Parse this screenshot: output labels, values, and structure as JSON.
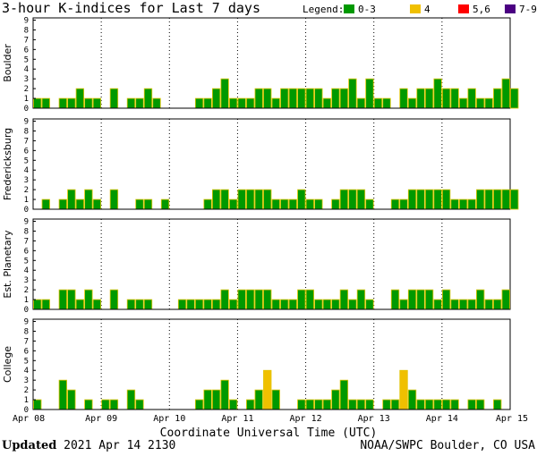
{
  "title": "3-hour K-indices for Last 7 days",
  "legend": {
    "label": "Legend:",
    "items": [
      {
        "label": "0-3",
        "color": "#009900"
      },
      {
        "label": "4",
        "color": "#f0c000"
      },
      {
        "label": "5,6",
        "color": "#ff0000"
      },
      {
        "label": "7-9",
        "color": "#4b0082"
      }
    ]
  },
  "footer": {
    "xlabel": "Coordinate Universal Time (UTC)",
    "updated_label": "Updated",
    "updated_value": "2021 Apr 14 2130",
    "credit": "NOAA/SWPC Boulder, CO USA"
  },
  "chart_data": [
    {
      "type": "bar",
      "ylabel": "Boulder",
      "ylim": [
        0,
        9
      ],
      "yticks": [
        0,
        1,
        2,
        3,
        4,
        5,
        6,
        7,
        8,
        9
      ],
      "xticks": [
        "Apr 08",
        "Apr 09",
        "Apr 10",
        "Apr 11",
        "Apr 12",
        "Apr 13",
        "Apr 14",
        "Apr 15"
      ],
      "values": [
        1,
        1,
        0,
        1,
        1,
        2,
        1,
        1,
        0,
        2,
        0,
        1,
        1,
        2,
        1,
        0,
        0,
        0,
        0,
        1,
        1,
        2,
        3,
        1,
        1,
        1,
        2,
        2,
        1,
        2,
        2,
        2,
        2,
        2,
        1,
        2,
        2,
        3,
        1,
        3,
        1,
        1,
        0,
        2,
        1,
        2,
        2,
        3,
        2,
        2,
        1,
        2,
        1,
        1,
        2,
        3,
        2,
        0
      ]
    },
    {
      "type": "bar",
      "ylabel": "Fredericksburg",
      "ylim": [
        0,
        9
      ],
      "yticks": [
        0,
        1,
        2,
        3,
        4,
        5,
        6,
        7,
        8,
        9
      ],
      "xticks": [
        "Apr 08",
        "Apr 09",
        "Apr 10",
        "Apr 11",
        "Apr 12",
        "Apr 13",
        "Apr 14",
        "Apr 15"
      ],
      "values": [
        0,
        1,
        0,
        1,
        2,
        1,
        2,
        1,
        0,
        2,
        0,
        0,
        1,
        1,
        0,
        1,
        0,
        0,
        0,
        0,
        1,
        2,
        2,
        1,
        2,
        2,
        2,
        2,
        1,
        1,
        1,
        2,
        1,
        1,
        0,
        1,
        2,
        2,
        2,
        1,
        0,
        0,
        1,
        1,
        2,
        2,
        2,
        2,
        2,
        1,
        1,
        1,
        2,
        2,
        2,
        2,
        2,
        0
      ]
    },
    {
      "type": "bar",
      "ylabel": "Est. Planetary",
      "ylim": [
        0,
        9
      ],
      "yticks": [
        0,
        1,
        2,
        3,
        4,
        5,
        6,
        7,
        8,
        9
      ],
      "xticks": [
        "Apr 08",
        "Apr 09",
        "Apr 10",
        "Apr 11",
        "Apr 12",
        "Apr 13",
        "Apr 14",
        "Apr 15"
      ],
      "values": [
        1,
        1,
        0,
        2,
        2,
        1,
        2,
        1,
        0,
        2,
        0,
        1,
        1,
        1,
        0,
        0,
        0,
        1,
        1,
        1,
        1,
        1,
        2,
        1,
        2,
        2,
        2,
        2,
        1,
        1,
        1,
        2,
        2,
        1,
        1,
        1,
        2,
        1,
        2,
        1,
        0,
        0,
        2,
        1,
        2,
        2,
        2,
        1,
        2,
        1,
        1,
        1,
        2,
        1,
        1,
        2,
        0,
        0
      ]
    },
    {
      "type": "bar",
      "ylabel": "College",
      "ylim": [
        0,
        9
      ],
      "yticks": [
        0,
        1,
        2,
        3,
        4,
        5,
        6,
        7,
        8,
        9
      ],
      "xticks": [
        "Apr 08",
        "Apr 09",
        "Apr 10",
        "Apr 11",
        "Apr 12",
        "Apr 13",
        "Apr 14",
        "Apr 15"
      ],
      "values": [
        1,
        0,
        0,
        3,
        2,
        0,
        1,
        0,
        1,
        1,
        0,
        2,
        1,
        0,
        0,
        0,
        0,
        0,
        0,
        1,
        2,
        2,
        3,
        1,
        0,
        1,
        2,
        4,
        2,
        0,
        0,
        1,
        1,
        1,
        1,
        2,
        3,
        1,
        1,
        1,
        0,
        1,
        1,
        4,
        2,
        1,
        1,
        1,
        1,
        1,
        0,
        1,
        1,
        0,
        1,
        0,
        0,
        0
      ]
    }
  ]
}
